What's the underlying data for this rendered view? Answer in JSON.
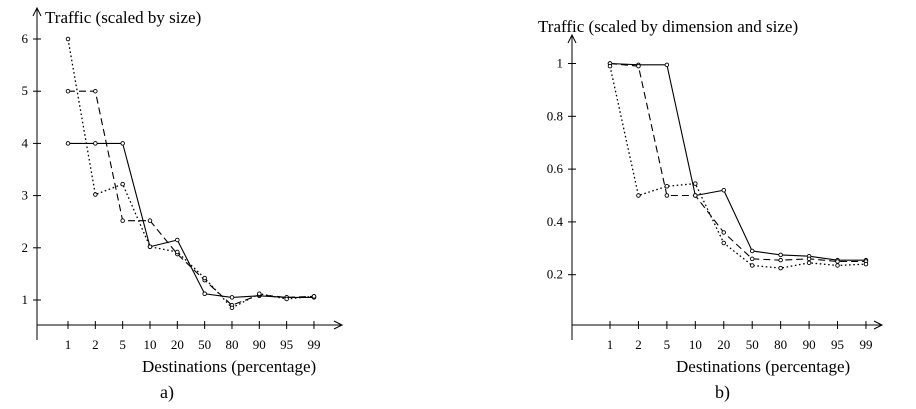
{
  "chart_data": [
    {
      "type": "line",
      "panel_label": "a)",
      "title": "Traffic (scaled by size)",
      "xlabel": "Destinations (percentage)",
      "ylabel": "",
      "categories": [
        "1",
        "2",
        "5",
        "10",
        "20",
        "50",
        "80",
        "90",
        "95",
        "99"
      ],
      "yticks": [
        "1",
        "2",
        "3",
        "4",
        "5",
        "6"
      ],
      "ylim": [
        0.25,
        6.6
      ],
      "grid": false,
      "series": [
        {
          "style": "solid",
          "values": [
            4.0,
            4.0,
            4.0,
            2.02,
            2.15,
            1.12,
            1.05,
            1.08,
            1.05,
            1.05
          ]
        },
        {
          "style": "dashed",
          "values": [
            5.0,
            5.0,
            2.52,
            2.52,
            1.88,
            1.38,
            0.9,
            1.1,
            1.05,
            1.07
          ]
        },
        {
          "style": "dotted",
          "values": [
            6.0,
            3.02,
            3.22,
            2.02,
            1.92,
            1.42,
            0.85,
            1.12,
            1.02,
            1.07
          ]
        }
      ]
    },
    {
      "type": "line",
      "panel_label": "b)",
      "title": "Traffic (scaled by dimension and size)",
      "xlabel": "Destinations (percentage)",
      "ylabel": "",
      "categories": [
        "1",
        "2",
        "5",
        "10",
        "20",
        "50",
        "80",
        "90",
        "95",
        "99"
      ],
      "yticks": [
        "0.2",
        "0.4",
        "0.6",
        "0.8",
        "1"
      ],
      "ylim": [
        0.0,
        1.1
      ],
      "grid": false,
      "series": [
        {
          "style": "solid",
          "values": [
            1.0,
            0.995,
            0.995,
            0.5,
            0.52,
            0.29,
            0.275,
            0.27,
            0.255,
            0.255
          ]
        },
        {
          "style": "dashed",
          "values": [
            1.0,
            0.99,
            0.5,
            0.5,
            0.36,
            0.26,
            0.255,
            0.26,
            0.25,
            0.25
          ]
        },
        {
          "style": "dotted",
          "values": [
            0.99,
            0.5,
            0.535,
            0.545,
            0.32,
            0.235,
            0.225,
            0.245,
            0.235,
            0.24
          ]
        }
      ]
    }
  ]
}
